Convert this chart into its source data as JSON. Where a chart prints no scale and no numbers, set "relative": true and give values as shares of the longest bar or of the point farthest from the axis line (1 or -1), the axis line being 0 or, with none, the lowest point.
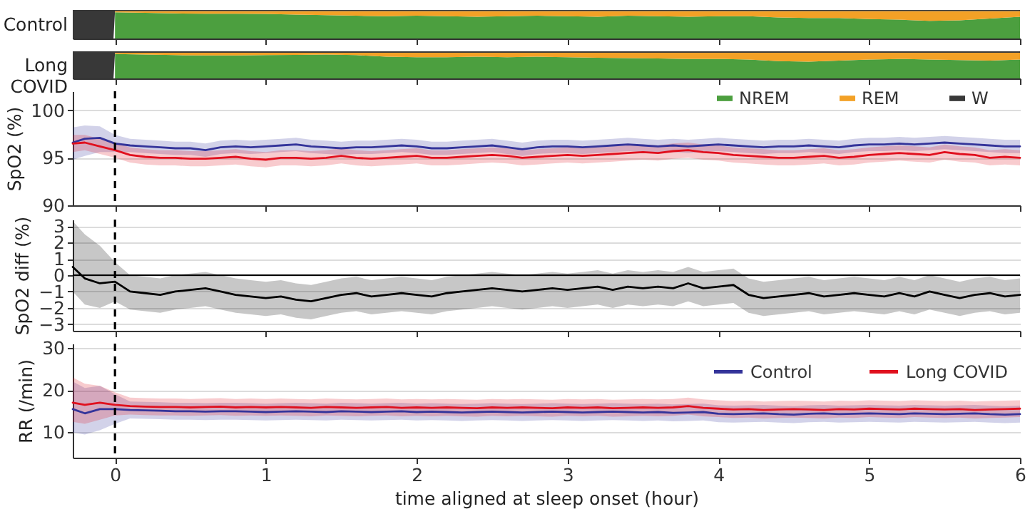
{
  "chart_data": [
    {
      "type": "area",
      "stacked": true,
      "relative": true,
      "ylabel": "Control",
      "xlim": [
        -0.28,
        6
      ],
      "xticks": [
        0,
        1,
        2,
        3,
        4,
        5,
        6
      ],
      "tick_labels": false,
      "x": [
        -0.28,
        -0.01,
        0,
        0.2,
        0.4,
        0.6,
        0.8,
        1,
        1.2,
        1.4,
        1.6,
        1.8,
        2,
        2.2,
        2.4,
        2.6,
        2.8,
        3,
        3.2,
        3.4,
        3.6,
        3.8,
        4,
        4.2,
        4.4,
        4.6,
        4.8,
        5,
        5.2,
        5.4,
        5.6,
        5.8,
        6
      ],
      "series": [
        {
          "color": "#4c9f3f",
          "values": [
            null,
            null,
            0.92,
            0.9,
            0.88,
            0.87,
            0.87,
            0.86,
            0.84,
            0.82,
            0.8,
            0.78,
            0.8,
            0.78,
            0.76,
            0.78,
            0.8,
            0.78,
            0.76,
            0.8,
            0.78,
            0.76,
            0.78,
            0.78,
            0.74,
            0.72,
            0.72,
            0.68,
            0.66,
            0.62,
            0.64,
            0.7,
            0.76
          ]
        },
        {
          "color": "#f3a126",
          "values": [
            null,
            null,
            0.04,
            0.06,
            0.08,
            0.09,
            0.09,
            0.1,
            0.12,
            0.14,
            0.16,
            0.18,
            0.16,
            0.18,
            0.2,
            0.18,
            0.16,
            0.18,
            0.2,
            0.16,
            0.18,
            0.2,
            0.18,
            0.18,
            0.22,
            0.24,
            0.24,
            0.28,
            0.3,
            0.34,
            0.32,
            0.26,
            0.2
          ]
        },
        {
          "color": "#383838",
          "values": [
            1,
            1,
            0.04,
            0.04,
            0.04,
            0.04,
            0.04,
            0.04,
            0.04,
            0.04,
            0.04,
            0.04,
            0.04,
            0.04,
            0.04,
            0.04,
            0.04,
            0.04,
            0.04,
            0.04,
            0.04,
            0.04,
            0.04,
            0.04,
            0.04,
            0.04,
            0.04,
            0.04,
            0.04,
            0.04,
            0.04,
            0.04,
            0.04
          ]
        }
      ]
    },
    {
      "type": "area",
      "stacked": true,
      "relative": true,
      "ylabel": "Long COVID",
      "xlim": [
        -0.28,
        6
      ],
      "xticks": [
        0,
        1,
        2,
        3,
        4,
        5,
        6
      ],
      "tick_labels": false,
      "legend": "bottom right",
      "x": [
        -0.28,
        -0.01,
        0,
        0.2,
        0.4,
        0.6,
        0.8,
        1,
        1.2,
        1.4,
        1.6,
        1.8,
        2,
        2.2,
        2.4,
        2.6,
        2.8,
        3,
        3.2,
        3.4,
        3.6,
        3.8,
        4,
        4.2,
        4.4,
        4.6,
        4.8,
        5,
        5.2,
        5.4,
        5.6,
        5.8,
        6
      ],
      "series": [
        {
          "name": "NREM",
          "color": "#4c9f3f",
          "values": [
            null,
            null,
            0.9,
            0.88,
            0.86,
            0.85,
            0.85,
            0.86,
            0.87,
            0.88,
            0.86,
            0.8,
            0.78,
            0.78,
            0.8,
            0.78,
            0.8,
            0.78,
            0.76,
            0.75,
            0.74,
            0.72,
            0.72,
            0.7,
            0.64,
            0.62,
            0.66,
            0.7,
            0.72,
            0.7,
            0.68,
            0.66,
            0.7
          ]
        },
        {
          "name": "REM",
          "color": "#f3a126",
          "values": [
            null,
            null,
            0.05,
            0.07,
            0.09,
            0.1,
            0.1,
            0.09,
            0.08,
            0.07,
            0.09,
            0.15,
            0.17,
            0.17,
            0.15,
            0.17,
            0.15,
            0.17,
            0.19,
            0.2,
            0.21,
            0.23,
            0.23,
            0.25,
            0.31,
            0.33,
            0.29,
            0.25,
            0.23,
            0.25,
            0.27,
            0.29,
            0.25
          ]
        },
        {
          "name": "W",
          "color": "#383838",
          "values": [
            1,
            1,
            0.05,
            0.05,
            0.05,
            0.05,
            0.05,
            0.05,
            0.05,
            0.05,
            0.05,
            0.05,
            0.05,
            0.05,
            0.05,
            0.05,
            0.05,
            0.05,
            0.05,
            0.05,
            0.05,
            0.05,
            0.05,
            0.05,
            0.05,
            0.05,
            0.05,
            0.05,
            0.05,
            0.05,
            0.05,
            0.05,
            0.05
          ]
        }
      ]
    },
    {
      "type": "line",
      "ylabel": "SpO2 (%)",
      "xlim": [
        -0.28,
        6
      ],
      "xticks": [
        0,
        1,
        2,
        3,
        4,
        5,
        6
      ],
      "ylim": [
        90,
        102
      ],
      "yticks": [
        90,
        95,
        100
      ],
      "grid": "y",
      "tick_labels": "y",
      "ref_lines": [
        {
          "axis": "x",
          "value": 0,
          "color": "#000000",
          "line_style": "dashed"
        }
      ],
      "x": [
        -0.28,
        -0.2,
        -0.1,
        0,
        0.1,
        0.2,
        0.3,
        0.4,
        0.5,
        0.6,
        0.7,
        0.8,
        0.9,
        1,
        1.1,
        1.2,
        1.3,
        1.4,
        1.5,
        1.6,
        1.7,
        1.8,
        1.9,
        2,
        2.1,
        2.2,
        2.3,
        2.4,
        2.5,
        2.6,
        2.7,
        2.8,
        2.9,
        3,
        3.1,
        3.2,
        3.3,
        3.4,
        3.5,
        3.6,
        3.7,
        3.8,
        3.9,
        4,
        4.1,
        4.2,
        4.3,
        4.4,
        4.5,
        4.6,
        4.7,
        4.8,
        4.9,
        5,
        5.1,
        5.2,
        5.3,
        5.4,
        5.5,
        5.6,
        5.7,
        5.8,
        5.9,
        6
      ],
      "series": [
        {
          "color": "#34349a",
          "values": [
            96.6,
            97.0,
            97.1,
            96.5,
            96.3,
            96.2,
            96.1,
            96.0,
            96.0,
            95.8,
            96.1,
            96.2,
            96.1,
            96.2,
            96.3,
            96.4,
            96.2,
            96.1,
            96.0,
            96.1,
            96.1,
            96.2,
            96.3,
            96.2,
            96.0,
            96.0,
            96.1,
            96.2,
            96.3,
            96.1,
            95.9,
            96.1,
            96.2,
            96.2,
            96.1,
            96.2,
            96.3,
            96.4,
            96.3,
            96.2,
            96.3,
            96.2,
            96.3,
            96.4,
            96.3,
            96.2,
            96.1,
            96.2,
            96.2,
            96.3,
            96.2,
            96.1,
            96.3,
            96.4,
            96.4,
            96.5,
            96.4,
            96.5,
            96.6,
            96.5,
            96.4,
            96.3,
            96.2,
            96.2
          ],
          "lower": [
            94.8,
            95.2,
            95.6,
            95.6,
            95.6,
            95.5,
            95.4,
            95.3,
            95.3,
            95.1,
            95.4,
            95.5,
            95.4,
            95.5,
            95.6,
            95.7,
            95.5,
            95.4,
            95.3,
            95.4,
            95.4,
            95.5,
            95.6,
            95.5,
            95.3,
            95.3,
            95.4,
            95.5,
            95.6,
            95.4,
            95.2,
            95.4,
            95.5,
            95.5,
            95.4,
            95.5,
            95.6,
            95.7,
            95.6,
            95.5,
            95.6,
            95.5,
            95.6,
            95.7,
            95.6,
            95.5,
            95.4,
            95.5,
            95.5,
            95.6,
            95.5,
            95.4,
            95.6,
            95.7,
            95.7,
            95.8,
            95.7,
            95.8,
            95.9,
            95.8,
            95.7,
            95.6,
            95.5,
            95.5
          ],
          "upper": [
            98.2,
            98.4,
            98.3,
            97.4,
            97.0,
            96.9,
            96.8,
            96.7,
            96.7,
            96.5,
            96.8,
            96.9,
            96.8,
            96.9,
            97.0,
            97.1,
            96.9,
            96.8,
            96.7,
            96.8,
            96.8,
            96.9,
            97.0,
            96.9,
            96.7,
            96.7,
            96.8,
            96.9,
            97.0,
            96.8,
            96.6,
            96.8,
            96.9,
            96.9,
            96.8,
            96.9,
            97.0,
            97.1,
            97.0,
            96.9,
            97.0,
            96.9,
            97.0,
            97.1,
            97.0,
            96.9,
            96.8,
            96.9,
            96.9,
            97.0,
            96.9,
            96.8,
            97.0,
            97.1,
            97.1,
            97.2,
            97.1,
            97.2,
            97.3,
            97.2,
            97.1,
            97.0,
            96.9,
            96.9
          ]
        },
        {
          "color": "#e0101e",
          "values": [
            96.5,
            96.6,
            96.2,
            95.8,
            95.3,
            95.1,
            95.0,
            95.0,
            94.9,
            94.9,
            95.0,
            95.1,
            94.9,
            94.8,
            95.0,
            95.0,
            94.9,
            95.0,
            95.2,
            95.0,
            94.9,
            95.0,
            95.1,
            95.2,
            95.0,
            95.0,
            95.1,
            95.2,
            95.3,
            95.2,
            95.0,
            95.1,
            95.2,
            95.3,
            95.2,
            95.3,
            95.4,
            95.5,
            95.6,
            95.5,
            95.7,
            95.8,
            95.6,
            95.5,
            95.3,
            95.2,
            95.1,
            95.0,
            95.0,
            95.1,
            95.2,
            95.0,
            95.1,
            95.3,
            95.4,
            95.5,
            95.4,
            95.3,
            95.6,
            95.4,
            95.3,
            95.0,
            95.1,
            95.0
          ],
          "lower": [
            95.6,
            95.8,
            95.4,
            95.0,
            94.5,
            94.3,
            94.2,
            94.2,
            94.1,
            94.1,
            94.2,
            94.3,
            94.1,
            94.0,
            94.2,
            94.2,
            94.1,
            94.2,
            94.4,
            94.2,
            94.1,
            94.2,
            94.3,
            94.4,
            94.2,
            94.2,
            94.3,
            94.4,
            94.5,
            94.4,
            94.2,
            94.3,
            94.4,
            94.5,
            94.4,
            94.5,
            94.6,
            94.7,
            94.8,
            94.7,
            94.9,
            95.0,
            94.8,
            94.7,
            94.5,
            94.4,
            94.3,
            94.2,
            94.2,
            94.3,
            94.4,
            94.2,
            94.3,
            94.5,
            94.6,
            94.7,
            94.6,
            94.5,
            94.8,
            94.6,
            94.5,
            94.2,
            94.3,
            94.2
          ],
          "upper": [
            97.4,
            97.4,
            97.0,
            96.6,
            96.1,
            95.9,
            95.8,
            95.8,
            95.7,
            95.7,
            95.8,
            95.9,
            95.7,
            95.6,
            95.8,
            95.8,
            95.7,
            95.8,
            96.0,
            95.8,
            95.7,
            95.8,
            95.9,
            96.0,
            95.8,
            95.8,
            95.9,
            96.0,
            96.1,
            96.0,
            95.8,
            95.9,
            96.0,
            96.1,
            96.0,
            96.1,
            96.2,
            96.3,
            96.4,
            96.3,
            96.5,
            96.6,
            96.4,
            96.3,
            96.1,
            96.0,
            95.9,
            95.8,
            95.8,
            95.9,
            96.0,
            95.8,
            95.9,
            96.1,
            96.2,
            96.3,
            96.2,
            96.1,
            96.4,
            96.2,
            96.1,
            95.8,
            95.9,
            95.8
          ]
        }
      ]
    },
    {
      "type": "line",
      "ylabel": "SpO2 diff (%)",
      "xlim": [
        -0.28,
        6
      ],
      "xticks": [
        0,
        1,
        2,
        3,
        4,
        5,
        6
      ],
      "ylim": [
        -3.4,
        3.4
      ],
      "yticks": [
        -3,
        -2,
        -1,
        0,
        1,
        2,
        3
      ],
      "grid": "y",
      "tick_labels": "y",
      "ref_lines": [
        {
          "axis": "x",
          "value": 0,
          "color": "#000000",
          "line_style": "dashed"
        },
        {
          "axis": "y",
          "value": 0,
          "color": "#000000"
        }
      ],
      "x": [
        -0.28,
        -0.2,
        -0.1,
        0,
        0.1,
        0.2,
        0.3,
        0.4,
        0.5,
        0.6,
        0.7,
        0.8,
        0.9,
        1,
        1.1,
        1.2,
        1.3,
        1.4,
        1.5,
        1.6,
        1.7,
        1.8,
        1.9,
        2,
        2.1,
        2.2,
        2.3,
        2.4,
        2.5,
        2.6,
        2.7,
        2.8,
        2.9,
        3,
        3.1,
        3.2,
        3.3,
        3.4,
        3.5,
        3.6,
        3.7,
        3.8,
        3.9,
        4,
        4.1,
        4.2,
        4.3,
        4.4,
        4.5,
        4.6,
        4.7,
        4.8,
        4.9,
        5,
        5.1,
        5.2,
        5.3,
        5.4,
        5.5,
        5.6,
        5.7,
        5.8,
        5.9,
        6
      ],
      "series": [
        {
          "color": "#000000",
          "values": [
            0.5,
            -0.2,
            -0.5,
            -0.4,
            -1.0,
            -1.1,
            -1.2,
            -1.0,
            -0.9,
            -0.8,
            -1.0,
            -1.2,
            -1.3,
            -1.4,
            -1.3,
            -1.5,
            -1.6,
            -1.4,
            -1.2,
            -1.1,
            -1.3,
            -1.2,
            -1.1,
            -1.2,
            -1.3,
            -1.1,
            -1.0,
            -0.9,
            -0.8,
            -0.9,
            -1.0,
            -0.9,
            -0.8,
            -0.9,
            -0.8,
            -0.7,
            -0.9,
            -0.7,
            -0.8,
            -0.7,
            -0.8,
            -0.5,
            -0.8,
            -0.7,
            -0.6,
            -1.2,
            -1.4,
            -1.3,
            -1.2,
            -1.1,
            -1.3,
            -1.2,
            -1.1,
            -1.2,
            -1.3,
            -1.1,
            -1.3,
            -1.0,
            -1.2,
            -1.4,
            -1.2,
            -1.1,
            -1.3,
            -1.2
          ],
          "lower": [
            -1.0,
            -1.8,
            -2.0,
            -1.6,
            -2.1,
            -2.2,
            -2.3,
            -2.1,
            -2.0,
            -1.9,
            -2.1,
            -2.3,
            -2.4,
            -2.5,
            -2.4,
            -2.6,
            -2.7,
            -2.5,
            -2.3,
            -2.2,
            -2.4,
            -2.3,
            -2.2,
            -2.3,
            -2.4,
            -2.2,
            -2.1,
            -2.0,
            -1.9,
            -2.0,
            -2.1,
            -2.0,
            -1.9,
            -2.0,
            -1.9,
            -1.8,
            -2.0,
            -1.8,
            -1.9,
            -1.8,
            -1.9,
            -1.6,
            -1.9,
            -1.8,
            -1.7,
            -2.3,
            -2.5,
            -2.4,
            -2.3,
            -2.2,
            -2.4,
            -2.3,
            -2.2,
            -2.3,
            -2.4,
            -2.2,
            -2.4,
            -2.1,
            -2.3,
            -2.5,
            -2.3,
            -2.2,
            -2.4,
            -2.3
          ],
          "upper": [
            3.3,
            2.5,
            1.8,
            0.8,
            0.0,
            -0.1,
            -0.2,
            0.0,
            0.1,
            0.2,
            0.0,
            -0.2,
            -0.3,
            -0.4,
            -0.3,
            -0.5,
            -0.6,
            -0.4,
            -0.2,
            -0.1,
            -0.3,
            -0.2,
            -0.1,
            -0.2,
            -0.3,
            -0.1,
            0.0,
            0.1,
            0.2,
            0.1,
            0.0,
            0.1,
            0.2,
            0.1,
            0.2,
            0.3,
            0.1,
            0.3,
            0.2,
            0.3,
            0.2,
            0.5,
            0.2,
            0.3,
            0.4,
            -0.2,
            -0.4,
            -0.3,
            -0.2,
            -0.1,
            -0.3,
            -0.2,
            -0.1,
            -0.2,
            -0.3,
            -0.1,
            -0.3,
            0.0,
            -0.2,
            -0.4,
            -0.2,
            -0.1,
            -0.3,
            -0.2
          ]
        }
      ]
    },
    {
      "type": "line",
      "ylabel": "RR (/min)",
      "xlabel": "time aligned at sleep onset (hour)",
      "xlim": [
        -0.28,
        6
      ],
      "xticks": [
        0,
        1,
        2,
        3,
        4,
        5,
        6
      ],
      "ylim": [
        4,
        31
      ],
      "yticks": [
        10,
        20,
        30
      ],
      "grid": "y",
      "legend": "top right",
      "ref_lines": [
        {
          "axis": "x",
          "value": 0,
          "color": "#000000",
          "line_style": "dashed"
        }
      ],
      "x": [
        -0.28,
        -0.2,
        -0.1,
        0,
        0.1,
        0.2,
        0.3,
        0.4,
        0.5,
        0.6,
        0.7,
        0.8,
        0.9,
        1,
        1.1,
        1.2,
        1.3,
        1.4,
        1.5,
        1.6,
        1.7,
        1.8,
        1.9,
        2,
        2.1,
        2.2,
        2.3,
        2.4,
        2.5,
        2.6,
        2.7,
        2.8,
        2.9,
        3,
        3.1,
        3.2,
        3.3,
        3.4,
        3.5,
        3.6,
        3.7,
        3.8,
        3.9,
        4,
        4.1,
        4.2,
        4.3,
        4.4,
        4.5,
        4.6,
        4.7,
        4.8,
        4.9,
        5,
        5.1,
        5.2,
        5.3,
        5.4,
        5.5,
        5.6,
        5.7,
        5.8,
        5.9,
        6
      ],
      "series": [
        {
          "name": "Control",
          "color": "#34349a",
          "values": [
            15.5,
            14.5,
            15.5,
            15.5,
            15.3,
            15.2,
            15.1,
            15.0,
            15.0,
            14.9,
            15.0,
            15.0,
            14.9,
            14.8,
            14.9,
            15.0,
            14.9,
            14.8,
            15.0,
            14.9,
            14.8,
            14.9,
            15.0,
            14.8,
            14.9,
            14.8,
            14.7,
            14.8,
            14.9,
            14.8,
            14.7,
            14.8,
            14.9,
            14.8,
            14.7,
            14.8,
            14.9,
            14.8,
            14.7,
            14.8,
            14.6,
            14.7,
            14.8,
            14.4,
            14.3,
            14.4,
            14.5,
            14.3,
            14.2,
            14.4,
            14.5,
            14.3,
            14.4,
            14.5,
            14.4,
            14.3,
            14.5,
            14.4,
            14.3,
            14.4,
            14.5,
            14.3,
            14.2,
            14.3
          ],
          "lower": [
            10.0,
            9.5,
            10.5,
            12.0,
            13.3,
            13.2,
            13.1,
            13.0,
            13.0,
            12.9,
            13.0,
            13.0,
            12.9,
            12.8,
            12.9,
            13.0,
            12.9,
            12.8,
            13.0,
            12.9,
            12.8,
            12.9,
            13.0,
            12.8,
            12.9,
            12.8,
            12.7,
            12.8,
            12.9,
            12.8,
            12.7,
            12.8,
            12.9,
            12.8,
            12.7,
            12.8,
            12.9,
            12.8,
            12.7,
            12.8,
            12.6,
            12.7,
            12.8,
            12.4,
            12.3,
            12.4,
            12.5,
            12.3,
            12.2,
            12.4,
            12.5,
            12.3,
            12.4,
            12.5,
            12.4,
            12.3,
            12.5,
            12.4,
            12.3,
            12.4,
            12.5,
            12.3,
            12.2,
            12.3
          ],
          "upper": [
            22.0,
            20.5,
            21.0,
            19.0,
            17.3,
            17.2,
            17.1,
            17.0,
            17.0,
            16.9,
            17.0,
            17.0,
            16.9,
            16.8,
            16.9,
            17.0,
            16.9,
            16.8,
            17.0,
            16.9,
            16.8,
            16.9,
            17.0,
            16.8,
            16.9,
            16.8,
            16.7,
            16.8,
            16.9,
            16.8,
            16.7,
            16.8,
            16.9,
            16.8,
            16.7,
            16.8,
            16.9,
            16.8,
            16.7,
            16.8,
            16.6,
            16.7,
            16.8,
            16.4,
            16.3,
            16.4,
            16.5,
            16.3,
            16.2,
            16.4,
            16.5,
            16.3,
            16.4,
            16.5,
            16.4,
            16.3,
            16.5,
            16.4,
            16.3,
            16.4,
            16.5,
            16.3,
            16.2,
            16.3
          ]
        },
        {
          "name": "Long COVID",
          "color": "#e0101e",
          "values": [
            17.0,
            16.5,
            17.0,
            16.5,
            16.2,
            16.1,
            16.0,
            16.0,
            15.9,
            16.0,
            16.1,
            15.9,
            16.0,
            15.9,
            16.0,
            15.9,
            15.8,
            16.0,
            15.9,
            15.8,
            15.9,
            16.0,
            15.8,
            15.9,
            15.8,
            15.9,
            15.8,
            15.7,
            15.9,
            15.8,
            15.9,
            15.8,
            15.7,
            15.9,
            15.8,
            15.9,
            15.7,
            15.8,
            15.9,
            15.8,
            15.9,
            16.2,
            15.8,
            15.6,
            15.4,
            15.5,
            15.3,
            15.4,
            15.5,
            15.4,
            15.3,
            15.5,
            15.4,
            15.6,
            15.5,
            15.4,
            15.6,
            15.5,
            15.4,
            15.5,
            15.3,
            15.4,
            15.5,
            15.6
          ],
          "lower": [
            12.5,
            12.0,
            13.0,
            14.0,
            14.2,
            14.1,
            14.0,
            14.0,
            13.9,
            14.0,
            14.1,
            13.9,
            14.0,
            13.9,
            14.0,
            13.9,
            13.8,
            14.0,
            13.9,
            13.8,
            13.9,
            14.0,
            13.8,
            13.9,
            13.8,
            13.9,
            13.8,
            13.7,
            13.9,
            13.8,
            13.9,
            13.8,
            13.7,
            13.9,
            13.8,
            13.9,
            13.7,
            13.8,
            13.9,
            13.8,
            13.9,
            14.2,
            13.8,
            13.6,
            13.4,
            13.5,
            13.3,
            13.4,
            13.5,
            13.4,
            13.3,
            13.5,
            13.4,
            13.6,
            13.5,
            13.4,
            13.6,
            13.5,
            13.4,
            13.5,
            13.3,
            13.4,
            13.5,
            13.6
          ],
          "upper": [
            23.0,
            21.5,
            21.0,
            19.5,
            18.2,
            18.1,
            18.0,
            18.0,
            17.9,
            18.0,
            18.1,
            17.9,
            18.0,
            17.9,
            18.0,
            17.9,
            17.8,
            18.0,
            17.9,
            17.8,
            17.9,
            18.0,
            17.8,
            17.9,
            17.8,
            17.9,
            17.8,
            17.7,
            17.9,
            17.8,
            17.9,
            17.8,
            17.7,
            17.9,
            17.8,
            17.9,
            17.7,
            17.8,
            17.9,
            17.8,
            17.9,
            18.2,
            17.8,
            17.6,
            17.4,
            17.5,
            17.3,
            17.4,
            17.5,
            17.4,
            17.3,
            17.5,
            17.4,
            17.6,
            17.5,
            17.4,
            17.6,
            17.5,
            17.4,
            17.5,
            17.3,
            17.4,
            17.5,
            17.6
          ]
        }
      ]
    }
  ]
}
